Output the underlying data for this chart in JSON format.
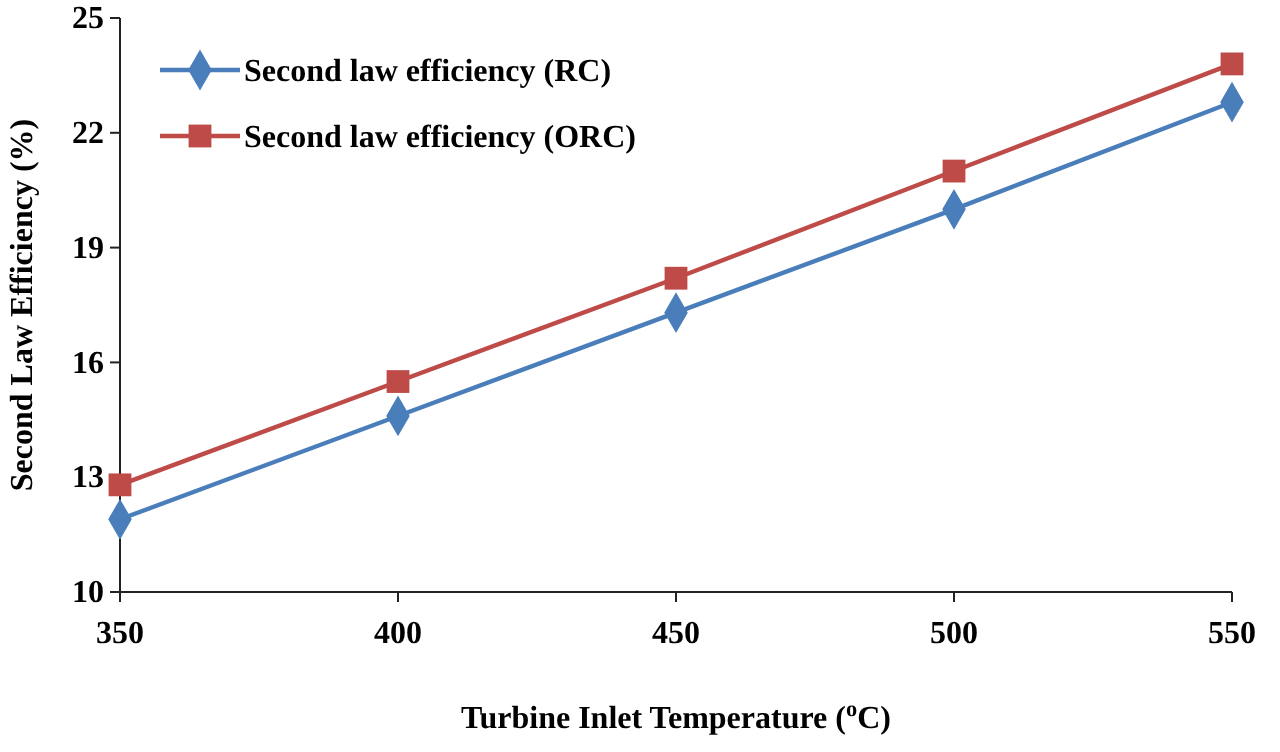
{
  "chart_data": {
    "type": "line",
    "xlabel": "Turbine Inlet Temperature ($^{o}$C)",
    "ylabel": "Second Law Efficiency (%)",
    "x": [
      350,
      400,
      450,
      500,
      550
    ],
    "series": [
      {
        "name": "Second law efficiency (RC)",
        "color": "#4a7ebb",
        "marker": "diamond",
        "values": [
          11.9,
          14.6,
          17.3,
          20.0,
          22.8
        ]
      },
      {
        "name": "Second law efficiency (ORC)",
        "color": "#be4b48",
        "marker": "square",
        "values": [
          12.8,
          15.5,
          18.2,
          21.0,
          23.8
        ]
      }
    ],
    "xlim": [
      350,
      550
    ],
    "xticks": [
      350,
      400,
      450,
      500,
      550
    ],
    "ylim": [
      10,
      25
    ],
    "yticks": [
      10,
      13,
      16,
      19,
      22,
      25
    ],
    "grid": false,
    "legend": "top left",
    "line_style": "solid"
  }
}
